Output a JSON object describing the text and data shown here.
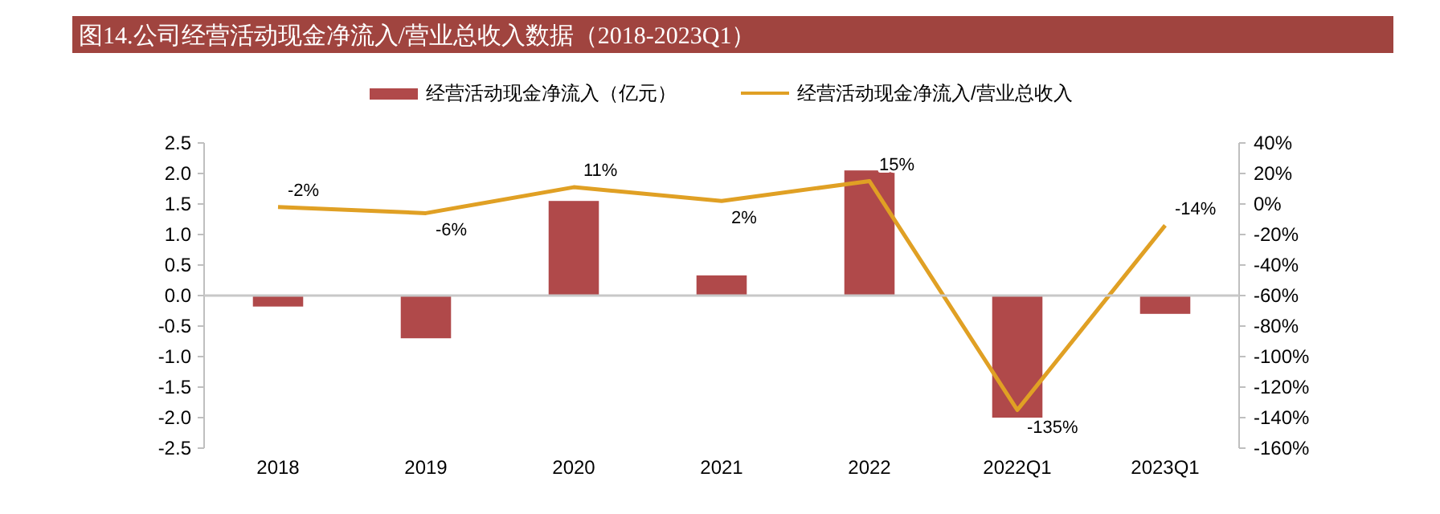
{
  "chart_data": {
    "type": "bar",
    "title": "图14.公司经营活动现金净流入/营业总收入数据（2018-2023Q1）",
    "categories": [
      "2018",
      "2019",
      "2020",
      "2021",
      "2022",
      "2022Q1",
      "2023Q1"
    ],
    "series": [
      {
        "name": "经营活动现金净流入（亿元）",
        "color": "#b0494a",
        "values": [
          -0.18,
          -0.7,
          1.55,
          0.33,
          2.05,
          -2.0,
          -0.3
        ]
      },
      {
        "name": "经营活动现金净流入/营业总收入",
        "type": "line",
        "axis": "y2",
        "color": "#e0a024",
        "values": [
          -2,
          -6,
          11,
          2,
          15,
          -135,
          -14
        ],
        "value_labels": [
          "-2%",
          "-6%",
          "11%",
          "2%",
          "15%",
          "-135%",
          "-14%"
        ]
      }
    ],
    "ylim": [
      -2.5,
      2.5
    ],
    "yticks": [
      {
        "value": 2.5,
        "label": "2.5"
      },
      {
        "value": 2,
        "label": "2.0"
      },
      {
        "value": 1.5,
        "label": "1.5"
      },
      {
        "value": 1,
        "label": "1.0"
      },
      {
        "value": 0.5,
        "label": "0.5"
      },
      {
        "value": 0,
        "label": "0.0"
      },
      {
        "value": -0.5,
        "label": "-0.5"
      },
      {
        "value": -1,
        "label": "-1.0"
      },
      {
        "value": -1.5,
        "label": "-1.5"
      },
      {
        "value": -2,
        "label": "-2.0"
      },
      {
        "value": -2.5,
        "label": "-2.5"
      }
    ],
    "y2lim": [
      -160,
      40
    ],
    "y2ticks": [
      {
        "value": 40,
        "label": "40%"
      },
      {
        "value": 20,
        "label": "20%"
      },
      {
        "value": 0,
        "label": "0%"
      },
      {
        "value": -20,
        "label": "-20%"
      },
      {
        "value": -40,
        "label": "-40%"
      },
      {
        "value": -60,
        "label": "-60%"
      },
      {
        "value": -80,
        "label": "-80%"
      },
      {
        "value": -100,
        "label": "-100%"
      },
      {
        "value": -120,
        "label": "-120%"
      },
      {
        "value": -140,
        "label": "-140%"
      },
      {
        "value": -160,
        "label": "-160%"
      }
    ],
    "ref_lines": [
      {
        "axis": "y",
        "value": 0,
        "color": "#c8c8c8"
      }
    ],
    "legend": "top",
    "grid": false
  }
}
